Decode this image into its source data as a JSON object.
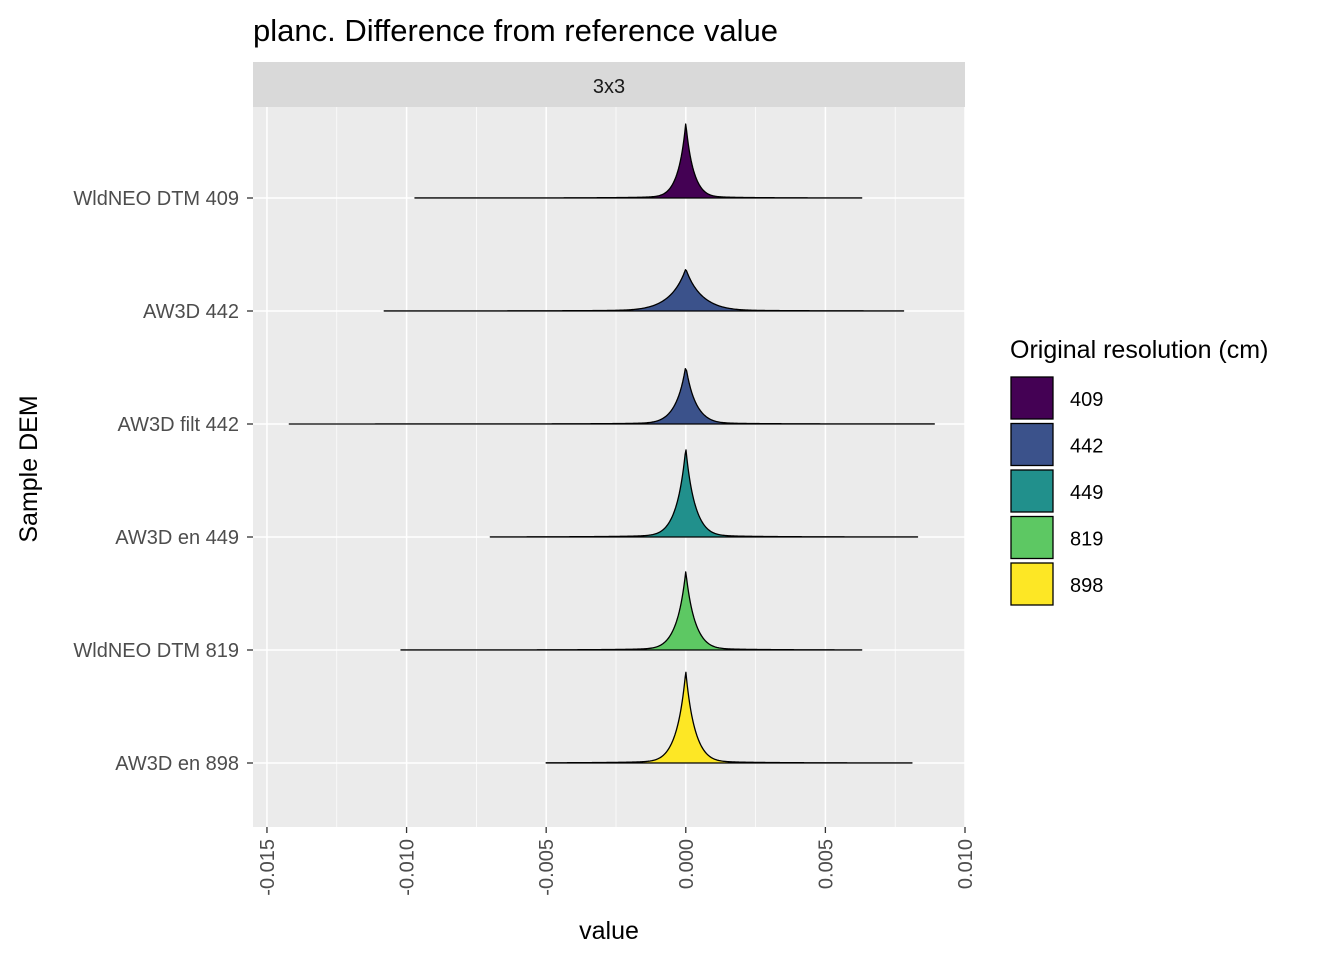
{
  "chart_data": {
    "type": "ridgeline",
    "title": "planc. Difference from reference value",
    "facet": "3x3",
    "xlabel": "value",
    "ylabel": "Sample DEM",
    "xlim": [
      -0.0155,
      0.01
    ],
    "x_ticks": [
      -0.015,
      -0.01,
      -0.005,
      0.0,
      0.005,
      0.01
    ],
    "x_tick_labels": [
      "-0.015",
      "-0.010",
      "-0.005",
      "0.000",
      "0.005",
      "0.010"
    ],
    "grid": true,
    "legend": {
      "title": "Original resolution (cm)",
      "position": "right",
      "entries": [
        {
          "label": "409",
          "color": "#440154"
        },
        {
          "label": "442",
          "color": "#3B528B"
        },
        {
          "label": "449",
          "color": "#21908C"
        },
        {
          "label": "819",
          "color": "#5DC863"
        },
        {
          "label": "898",
          "color": "#FDE725"
        }
      ]
    },
    "series": [
      {
        "name": "WldNEO DTM 409",
        "resolution": "409",
        "color": "#440154",
        "min": -0.0097,
        "max": 0.0063,
        "mode": 0.0,
        "peak_height": 0.8,
        "spread": 0.00022
      },
      {
        "name": "AW3D 442",
        "resolution": "442",
        "color": "#3B528B",
        "min": -0.0108,
        "max": 0.0078,
        "mode": 0.0,
        "peak_height": 0.45,
        "spread": 0.00045
      },
      {
        "name": "AW3D filt 442",
        "resolution": "442",
        "color": "#3B528B",
        "min": -0.0142,
        "max": 0.0089,
        "mode": 0.0,
        "peak_height": 0.62,
        "spread": 0.00028
      },
      {
        "name": "AW3D en 449",
        "resolution": "449",
        "color": "#21908C",
        "min": -0.007,
        "max": 0.0083,
        "mode": 0.0,
        "peak_height": 0.95,
        "spread": 0.00026
      },
      {
        "name": "WldNEO DTM 819",
        "resolution": "819",
        "color": "#5DC863",
        "min": -0.0102,
        "max": 0.0063,
        "mode": 0.0,
        "peak_height": 0.84,
        "spread": 0.00026
      },
      {
        "name": "AW3D en 898",
        "resolution": "898",
        "color": "#FDE725",
        "min": -0.005,
        "max": 0.0081,
        "mode": 0.0,
        "peak_height": 0.98,
        "spread": 0.00026
      }
    ]
  }
}
